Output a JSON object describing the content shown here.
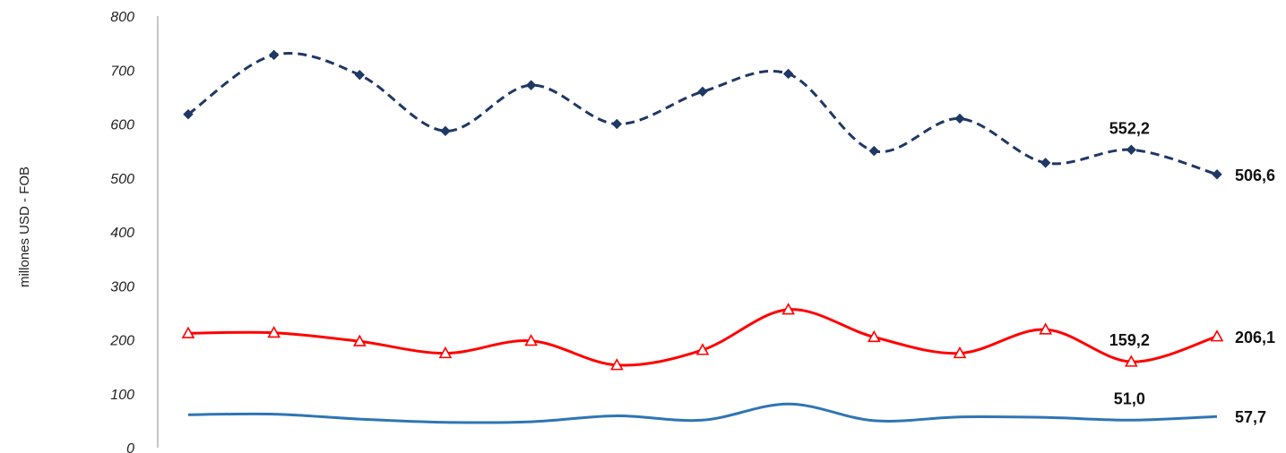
{
  "chart_data": {
    "type": "line",
    "title": "",
    "xlabel": "",
    "ylabel": "millones USD - FOB",
    "ylim": [
      0,
      800
    ],
    "yticks": [
      "0",
      "100",
      "200",
      "300",
      "400",
      "500",
      "600",
      "700",
      "800"
    ],
    "grid": false,
    "x": [
      1,
      2,
      3,
      4,
      5,
      6,
      7,
      8,
      9,
      10,
      11,
      12,
      13
    ],
    "series": [
      {
        "color": "#1f3864",
        "style": "dashed",
        "marker": "diamond",
        "values": [
          618,
          728,
          691,
          587,
          672,
          600,
          660,
          693,
          550,
          610,
          528,
          552.2,
          506.6
        ]
      },
      {
        "color": "#ff0000",
        "style": "solid",
        "marker": "triangle-open",
        "values": [
          212,
          213,
          197,
          175,
          198,
          153,
          181,
          256,
          205,
          175,
          219,
          159.2,
          206.1
        ]
      },
      {
        "color": "#2e75b6",
        "style": "solid",
        "marker": "none",
        "values": [
          61,
          62,
          53,
          47,
          48,
          59,
          51,
          81,
          50,
          57,
          56,
          51.0,
          57.7
        ]
      }
    ],
    "data_labels": [
      {
        "series": 0,
        "index": 11,
        "text": "552,2"
      },
      {
        "series": 0,
        "index": 12,
        "text": "506,6"
      },
      {
        "series": 1,
        "index": 11,
        "text": "159,2"
      },
      {
        "series": 1,
        "index": 12,
        "text": "206,1"
      },
      {
        "series": 2,
        "index": 11,
        "text": "51,0"
      },
      {
        "series": 2,
        "index": 12,
        "text": "57,7"
      }
    ]
  }
}
